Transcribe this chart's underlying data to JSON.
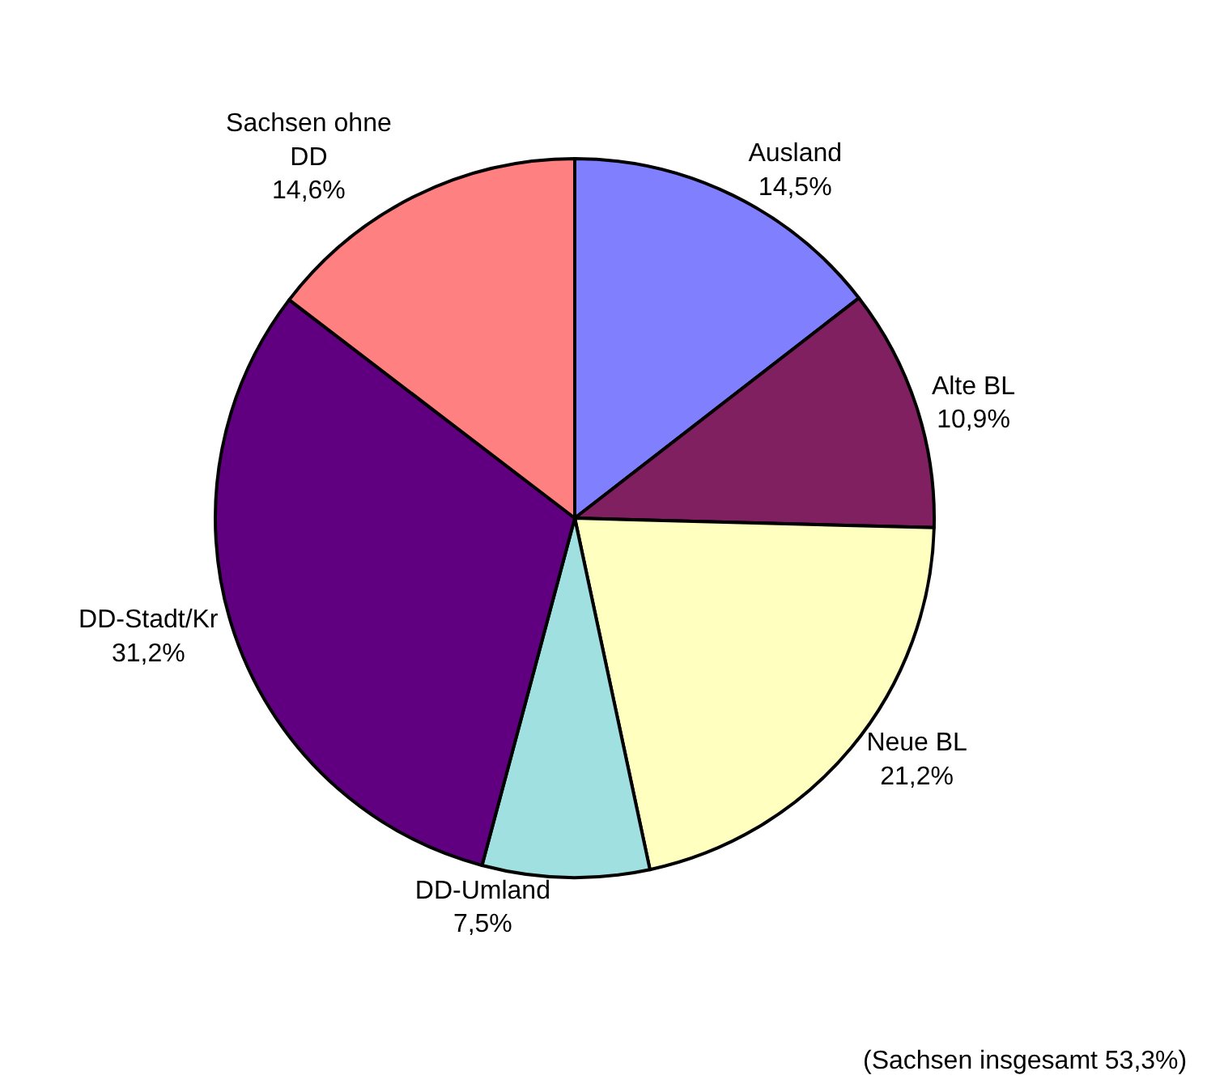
{
  "chart_data": {
    "type": "pie",
    "categories": [
      "Ausland",
      "Alte BL",
      "Neue BL",
      "DD-Umland",
      "DD-Stadt/Kr",
      "Sachsen ohne DD"
    ],
    "values": [
      14.5,
      10.9,
      21.2,
      7.5,
      31.2,
      14.6
    ],
    "value_labels": [
      "14,5%",
      "10,9%",
      "21,2%",
      "7,5%",
      "31,2%",
      "14,6%"
    ],
    "colors": [
      "#8080ff",
      "#802060",
      "#ffffc0",
      "#a0e0e0",
      "#600080",
      "#ff8080"
    ],
    "annotations": [
      "(Sachsen insgesamt 53,3%)"
    ]
  }
}
